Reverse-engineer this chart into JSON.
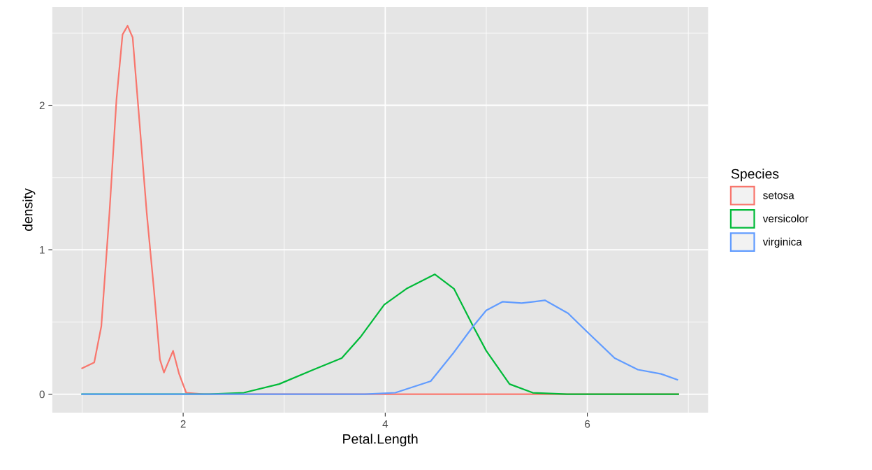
{
  "chart_data": {
    "type": "line",
    "xlabel": "Petal.Length",
    "ylabel": "density",
    "legend_title": "Species",
    "legend": "right",
    "grid": true,
    "marker": "none",
    "line_style": "solid",
    "xlim": [
      0.705,
      7.195
    ],
    "ylim": [
      -0.128,
      2.68
    ],
    "xticks": [
      2,
      4,
      6
    ],
    "yticks": [
      0,
      1,
      2
    ],
    "series": [
      {
        "name": "setosa",
        "color": "#f8766d",
        "x": [
          1.0,
          1.12,
          1.19,
          1.27,
          1.34,
          1.4,
          1.45,
          1.5,
          1.56,
          1.64,
          1.71,
          1.77,
          1.81,
          1.9,
          1.96,
          2.03,
          2.2,
          3,
          4,
          5,
          6,
          6.9
        ],
        "values": [
          0.18,
          0.22,
          0.47,
          1.25,
          2.04,
          2.49,
          2.55,
          2.47,
          1.95,
          1.25,
          0.73,
          0.24,
          0.15,
          0.3,
          0.14,
          0.01,
          0,
          0,
          0,
          0,
          0,
          0
        ]
      },
      {
        "name": "versicolor",
        "color": "#00ba38",
        "x": [
          1.0,
          2.0,
          2.26,
          2.6,
          2.95,
          3.29,
          3.57,
          3.76,
          3.99,
          4.21,
          4.49,
          4.68,
          4.87,
          5.0,
          5.23,
          5.46,
          5.8,
          6.9
        ],
        "values": [
          0,
          0,
          0,
          0.01,
          0.07,
          0.17,
          0.25,
          0.4,
          0.62,
          0.73,
          0.83,
          0.73,
          0.47,
          0.3,
          0.07,
          0.01,
          0,
          0
        ]
      },
      {
        "name": "virginica",
        "color": "#619cff",
        "x": [
          1.0,
          2.0,
          3.0,
          3.8,
          4.1,
          4.45,
          4.68,
          4.87,
          5.0,
          5.16,
          5.35,
          5.58,
          5.81,
          6.0,
          6.27,
          6.5,
          6.73,
          6.89
        ],
        "values": [
          0,
          0,
          0,
          0,
          0.01,
          0.09,
          0.29,
          0.47,
          0.58,
          0.64,
          0.63,
          0.65,
          0.56,
          0.43,
          0.25,
          0.17,
          0.14,
          0.1
        ]
      }
    ]
  }
}
